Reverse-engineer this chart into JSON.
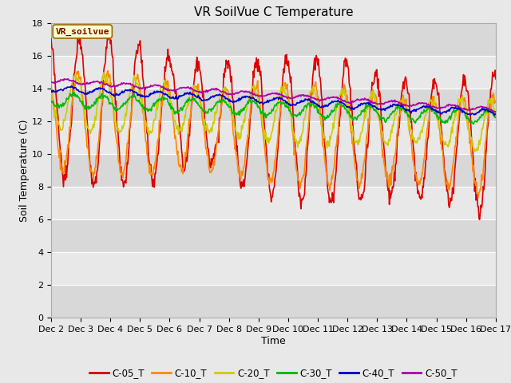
{
  "title": "VR SoilVue C Temperature",
  "xlabel": "Time",
  "ylabel": "Soil Temperature (C)",
  "ylim": [
    0,
    18
  ],
  "yticks": [
    0,
    2,
    4,
    6,
    8,
    10,
    12,
    14,
    16,
    18
  ],
  "x_labels": [
    "Dec 2",
    "Dec 3",
    "Dec 4",
    "Dec 5",
    "Dec 6",
    "Dec 7",
    "Dec 8",
    "Dec 9",
    "Dec 10",
    "Dec 11",
    "Dec 12",
    "Dec 13",
    "Dec 14",
    "Dec 15",
    "Dec 16",
    "Dec 17"
  ],
  "annotation_text": "VR_soilvue",
  "annotation_box_color": "#ffffcc",
  "annotation_text_color": "#800000",
  "annotation_edge_color": "#996600",
  "series_order": [
    "C-05_T",
    "C-10_T",
    "C-20_T",
    "C-30_T",
    "C-40_T",
    "C-50_T"
  ],
  "series": {
    "C-05_T": {
      "color": "#dd0000",
      "linewidth": 1.2
    },
    "C-10_T": {
      "color": "#ff8800",
      "linewidth": 1.2
    },
    "C-20_T": {
      "color": "#cccc00",
      "linewidth": 1.2
    },
    "C-30_T": {
      "color": "#00bb00",
      "linewidth": 1.2
    },
    "C-40_T": {
      "color": "#0000cc",
      "linewidth": 1.2
    },
    "C-50_T": {
      "color": "#aa00aa",
      "linewidth": 1.2
    }
  },
  "fig_bg_color": "#e8e8e8",
  "axes_bg_color": "#e8e8e8",
  "band_colors": [
    "#d8d8d8",
    "#e8e8e8"
  ],
  "grid_color": "#ffffff",
  "title_fontsize": 11,
  "label_fontsize": 9,
  "tick_fontsize": 8
}
